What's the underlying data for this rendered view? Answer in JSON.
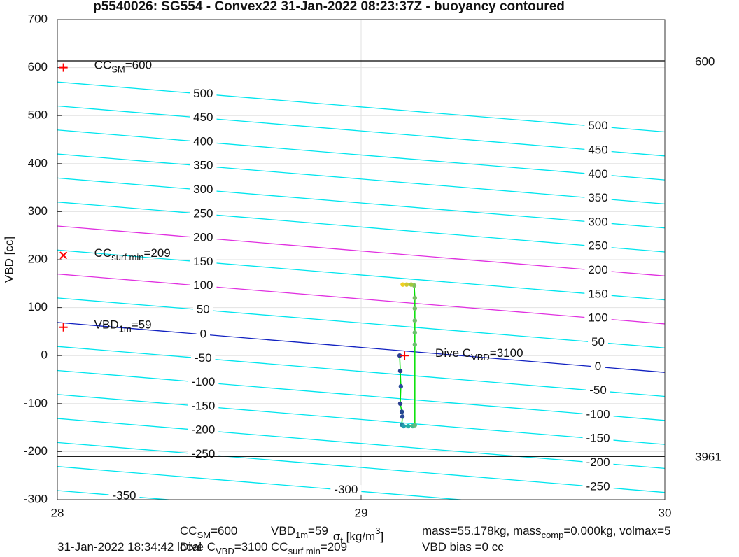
{
  "chart_data": {
    "type": "scatter",
    "title": "p5540026: SG554 - Convex22 31-Jan-2022 08:23:37Z - buoyancy contoured",
    "y_label": "VBD [cc]",
    "x_label": [
      {
        "t": "σ"
      },
      {
        "sub": "t"
      },
      {
        "t": " [kg/m"
      },
      {
        "sup": "3"
      },
      {
        "t": "]"
      }
    ],
    "xlim": [
      28,
      30
    ],
    "xticks": [
      28,
      29,
      30
    ],
    "ylim": [
      -300,
      700
    ],
    "yticks": [
      -300,
      -200,
      -100,
      0,
      100,
      200,
      300,
      400,
      500,
      600,
      700
    ],
    "grid": true,
    "contours": [
      {
        "level": 500,
        "color": "#00e5ee",
        "x": [
          28,
          30
        ],
        "values": [
          570,
          466
        ]
      },
      {
        "level": 450,
        "color": "#00e5ee",
        "x": [
          28,
          30
        ],
        "values": [
          520,
          416
        ]
      },
      {
        "level": 400,
        "color": "#00e5ee",
        "x": [
          28,
          30
        ],
        "values": [
          470,
          366
        ]
      },
      {
        "level": 350,
        "color": "#00e5ee",
        "x": [
          28,
          30
        ],
        "values": [
          420,
          316
        ]
      },
      {
        "level": 300,
        "color": "#00e5ee",
        "x": [
          28,
          30
        ],
        "values": [
          370,
          266
        ]
      },
      {
        "level": 250,
        "color": "#00e5ee",
        "x": [
          28,
          30
        ],
        "values": [
          320,
          216
        ]
      },
      {
        "level": 200,
        "color": "#e030e0",
        "x": [
          28,
          30
        ],
        "values": [
          270,
          166
        ]
      },
      {
        "level": 150,
        "color": "#00e5ee",
        "x": [
          28,
          30
        ],
        "values": [
          220,
          116
        ]
      },
      {
        "level": 100,
        "color": "#e030e0",
        "x": [
          28,
          30
        ],
        "values": [
          170,
          66
        ]
      },
      {
        "level": 50,
        "color": "#00e5ee",
        "x": [
          28,
          30
        ],
        "values": [
          120,
          16
        ]
      },
      {
        "level": 0,
        "color": "#1020c0",
        "x": [
          28,
          30
        ],
        "values": [
          69,
          -35
        ]
      },
      {
        "level": -50,
        "color": "#00e5ee",
        "x": [
          28,
          30
        ],
        "values": [
          19,
          -85
        ]
      },
      {
        "level": -100,
        "color": "#00e5ee",
        "x": [
          28,
          30
        ],
        "values": [
          -31,
          -135
        ]
      },
      {
        "level": -150,
        "color": "#00e5ee",
        "x": [
          28,
          30
        ],
        "values": [
          -81,
          -185
        ]
      },
      {
        "level": -200,
        "color": "#00e5ee",
        "x": [
          28,
          30
        ],
        "values": [
          -131,
          -235
        ]
      },
      {
        "level": -250,
        "color": "#00e5ee",
        "x": [
          28,
          30
        ],
        "values": [
          -181,
          -285
        ]
      },
      {
        "level": -300,
        "color": "#00e5ee",
        "x": [
          28,
          30
        ],
        "values": [
          -231,
          -335
        ]
      },
      {
        "level": -350,
        "color": "#00e5ee",
        "x": [
          28,
          30
        ],
        "values": [
          -281,
          -385
        ]
      }
    ],
    "hlines": [
      {
        "value": 614,
        "label": "600"
      },
      {
        "value": -210,
        "label": "3961"
      }
    ],
    "markers": [
      {
        "x": 28.02,
        "y": 600,
        "symbol": "+",
        "label": [
          {
            "t": "CC"
          },
          {
            "sub": "SM"
          },
          {
            "t": "=600"
          }
        ]
      },
      {
        "x": 28.02,
        "y": 209,
        "symbol": "x",
        "label": [
          {
            "t": "CC"
          },
          {
            "sub": "surf min"
          },
          {
            "t": "=209"
          }
        ]
      },
      {
        "x": 28.02,
        "y": 59,
        "symbol": "+",
        "label": [
          {
            "t": "VBD"
          },
          {
            "sub": "1m"
          },
          {
            "t": "=59"
          }
        ]
      },
      {
        "x": 29.143,
        "y": 0,
        "symbol": "+",
        "label": [
          {
            "t": "Dive C"
          },
          {
            "sub": "VBD"
          },
          {
            "t": "=3100"
          }
        ]
      }
    ],
    "line_color": "#00e000",
    "points": {
      "x": [
        29.127,
        29.129,
        29.131,
        29.129,
        29.134,
        29.136,
        29.134,
        29.14,
        29.155,
        29.17,
        29.177,
        29.177,
        29.177,
        29.177,
        29.177,
        29.177,
        29.175,
        29.165,
        29.15,
        29.137
      ],
      "values": [
        0,
        -32,
        -64,
        -100,
        -117,
        -127,
        -144,
        -147,
        -147,
        -147,
        -145,
        23,
        48,
        73,
        98,
        120,
        146,
        148,
        148,
        148
      ],
      "colors": [
        "#2a3c8f",
        "#2a3c8f",
        "#2a4a9a",
        "#2a3c8f",
        "#23468f",
        "#2a4a9a",
        "#2080a0",
        "#20a0b0",
        "#20b0a8",
        "#40b890",
        "#60bc7c",
        "#6cc070",
        "#6cc070",
        "#70c06c",
        "#74c068",
        "#78c064",
        "#80c060",
        "#a0c840",
        "#d0c830",
        "#f0d020"
      ]
    },
    "footer": [
      [
        {
          "t": "CC"
        },
        {
          "sub": "SM"
        },
        {
          "t": "=600"
        }
      ],
      [
        {
          "t": "VBD"
        },
        {
          "sub": "1m"
        },
        {
          "t": "=59"
        }
      ],
      [
        {
          "t": "mass=55.178kg, mass"
        },
        {
          "sub": "comp"
        },
        {
          "t": "=0.000kg, volmax=5"
        }
      ],
      [
        {
          "t": "31-Jan-2022 18:34:42 local"
        }
      ],
      [
        {
          "t": "Dive C"
        },
        {
          "sub": "VBD"
        },
        {
          "t": "=3100"
        }
      ],
      [
        {
          "t": "CC"
        },
        {
          "sub": "surf min"
        },
        {
          "t": "=209"
        }
      ],
      [
        {
          "t": "VBD bias =0 cc"
        }
      ]
    ]
  }
}
